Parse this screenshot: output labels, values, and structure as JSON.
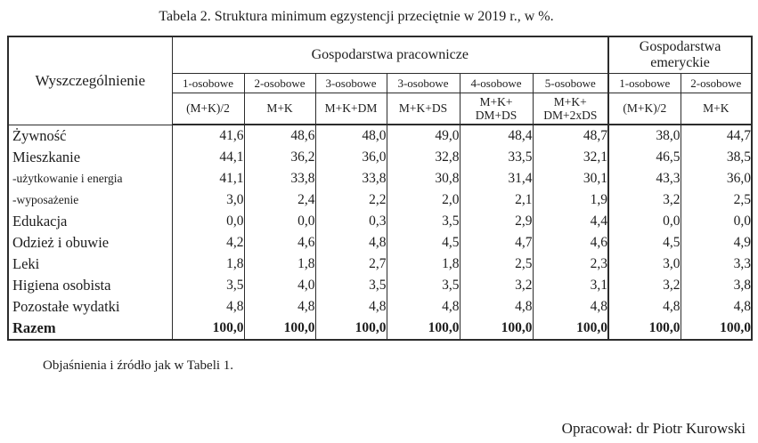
{
  "title": "Tabela 2. Struktura minimum egzystencji przeciętnie w 2019 r., w %.",
  "table": {
    "header": {
      "stub": "Wyszczególnienie",
      "groups": [
        "Gospodarstwa pracownicze",
        "Gospodarstwa\nemeryckie"
      ],
      "sizes": [
        "1-osobowe",
        "2-osobowe",
        "3-osobowe",
        "3-osobowe",
        "4-osobowe",
        "5-osobowe",
        "1-osobowe",
        "2-osobowe"
      ],
      "compositions": [
        "(M+K)/2",
        "M+K",
        "M+K+DM",
        "M+K+DS",
        "M+K+\nDM+DS",
        "M+K+\nDM+2xDS",
        "(M+K)/2",
        "M+K"
      ]
    },
    "rows": [
      {
        "label": "Żywność",
        "values": [
          "41,6",
          "48,6",
          "48,0",
          "49,0",
          "48,4",
          "48,7",
          "38,0",
          "44,7"
        ]
      },
      {
        "label": "Mieszkanie",
        "values": [
          "44,1",
          "36,2",
          "36,0",
          "32,8",
          "33,5",
          "32,1",
          "46,5",
          "38,5"
        ]
      },
      {
        "label": "-użytkowanie i energia",
        "small": true,
        "values": [
          "41,1",
          "33,8",
          "33,8",
          "30,8",
          "31,4",
          "30,1",
          "43,3",
          "36,0"
        ]
      },
      {
        "label": "-wyposażenie",
        "small": true,
        "values": [
          "3,0",
          "2,4",
          "2,2",
          "2,0",
          "2,1",
          "1,9",
          "3,2",
          "2,5"
        ]
      },
      {
        "label": "Edukacja",
        "values": [
          "0,0",
          "0,0",
          "0,3",
          "3,5",
          "2,9",
          "4,4",
          "0,0",
          "0,0"
        ]
      },
      {
        "label": "Odzież i obuwie",
        "values": [
          "4,2",
          "4,6",
          "4,8",
          "4,5",
          "4,7",
          "4,6",
          "4,5",
          "4,9"
        ]
      },
      {
        "label": "Leki",
        "values": [
          "1,8",
          "1,8",
          "2,7",
          "1,8",
          "2,5",
          "2,3",
          "3,0",
          "3,3"
        ]
      },
      {
        "label": "Higiena osobista",
        "values": [
          "3,5",
          "4,0",
          "3,5",
          "3,5",
          "3,2",
          "3,1",
          "3,2",
          "3,8"
        ]
      },
      {
        "label": "Pozostałe wydatki",
        "values": [
          "4,8",
          "4,8",
          "4,8",
          "4,8",
          "4,8",
          "4,8",
          "4,8",
          "4,8"
        ]
      },
      {
        "label": "Razem",
        "bold": true,
        "values": [
          "100,0",
          "100,0",
          "100,0",
          "100,0",
          "100,0",
          "100,0",
          "100,0",
          "100,0"
        ]
      }
    ]
  },
  "footnote": "Objaśnienia i źródło jak w Tabeli 1.",
  "credit": "Opracował: dr Piotr Kurowski"
}
